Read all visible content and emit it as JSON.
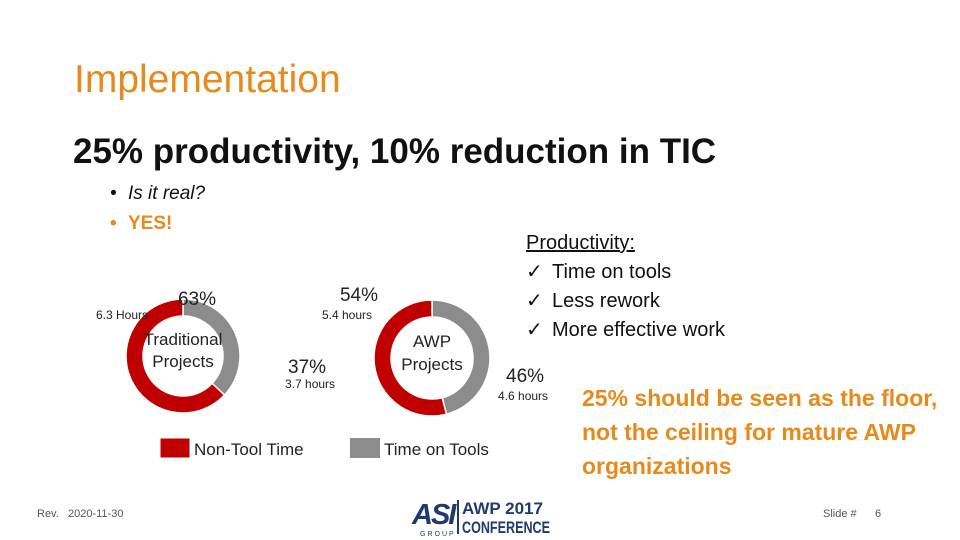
{
  "slide": {
    "title": "Implementation",
    "headline": "25% productivity, 10% reduction in TIC",
    "bullets": [
      {
        "text": "Is it real?",
        "bullet": "•"
      },
      {
        "text": "YES!",
        "bullet": "•"
      }
    ]
  },
  "productivity": {
    "heading": "Productivity:",
    "items": [
      {
        "check": "✓",
        "text": "Time on tools"
      },
      {
        "check": "✓",
        "text": "Less rework"
      },
      {
        "check": "✓",
        "text": "More effective work"
      }
    ]
  },
  "callout": "25% should be seen as the floor, not the ceiling for mature AWP organizations",
  "colors": {
    "accent": "#e8891c",
    "non_tool": "#c00000",
    "tool": "#8c8c8c"
  },
  "chart_data": [
    {
      "type": "pie",
      "center_label_line1": "Traditional",
      "center_label_line2": "Projects",
      "slices": [
        {
          "name": "Non-Tool Time",
          "value": 63,
          "value_label": "63%",
          "sub_label": "6.3 Hours"
        },
        {
          "name": "Time on Tools",
          "value": 37,
          "value_label": "37%",
          "sub_label": "3.7 hours"
        }
      ]
    },
    {
      "type": "pie",
      "center_label_line1": "AWP",
      "center_label_line2": "Projects",
      "slices": [
        {
          "name": "Non-Tool Time",
          "value": 54,
          "value_label": "54%",
          "sub_label": "5.4 hours"
        },
        {
          "name": "Time on Tools",
          "value": 46,
          "value_label": "46%",
          "sub_label": "4.6 hours"
        }
      ]
    }
  ],
  "legend": [
    {
      "label": "Non-Tool Time"
    },
    {
      "label": "Time on Tools"
    }
  ],
  "footer": {
    "rev_label": "Rev.",
    "rev_date": "2020-11-30",
    "slide_label": "Slide #",
    "slide_number": "6"
  },
  "logo": {
    "mark": "ASI",
    "mark_sub": "GROUP",
    "line1": "AWP 2017",
    "line2": "CONFERENCE"
  }
}
